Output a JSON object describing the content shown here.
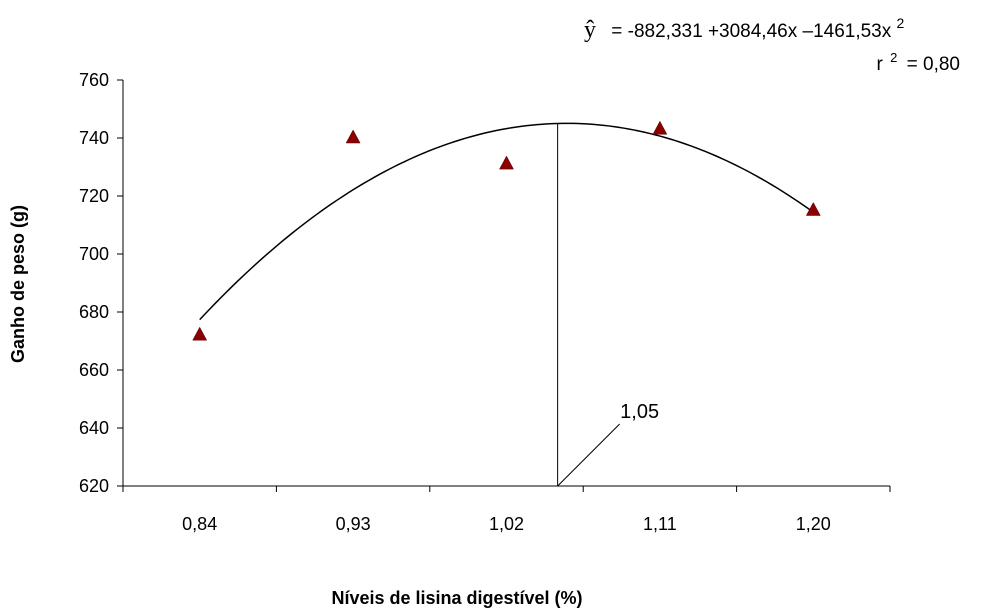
{
  "chart_data": {
    "type": "scatter",
    "title": "",
    "xlabel": "Níveis de lisina digestível (%)",
    "ylabel": "Ganho de peso (g)",
    "categories": [
      "0,84",
      "0,93",
      "1,02",
      "1,11",
      "1,20"
    ],
    "x": [
      0.84,
      0.93,
      1.02,
      1.11,
      1.2
    ],
    "xlim": [
      0.795,
      1.245
    ],
    "ylim": [
      620,
      760
    ],
    "yticks": [
      620,
      640,
      660,
      680,
      700,
      720,
      740,
      760
    ],
    "ytick_labels": [
      "620",
      "640",
      "660",
      "680",
      "700",
      "720",
      "740",
      "760"
    ],
    "series": [
      {
        "marker": "triangle",
        "color": "#8B0000",
        "x": [
          0.84,
          0.93,
          1.02,
          1.11,
          1.2
        ],
        "y": [
          672,
          740,
          731,
          743,
          715
        ]
      }
    ],
    "fit": {
      "type": "quadratic",
      "coefficients": [
        -882.331,
        3084.46,
        -1461.53
      ],
      "domain": [
        0.84,
        1.2
      ],
      "color": "#000000"
    },
    "equation": {
      "yhat": "ŷ",
      "formula": "= -882,331 +3084,46x –1461,53x",
      "superscript": "2",
      "r_label": "r",
      "r_sup": "2",
      "r_value": "= 0,80"
    },
    "annotation": {
      "text": "1,05",
      "x": 1.05
    },
    "grid": false,
    "legend": "none"
  }
}
